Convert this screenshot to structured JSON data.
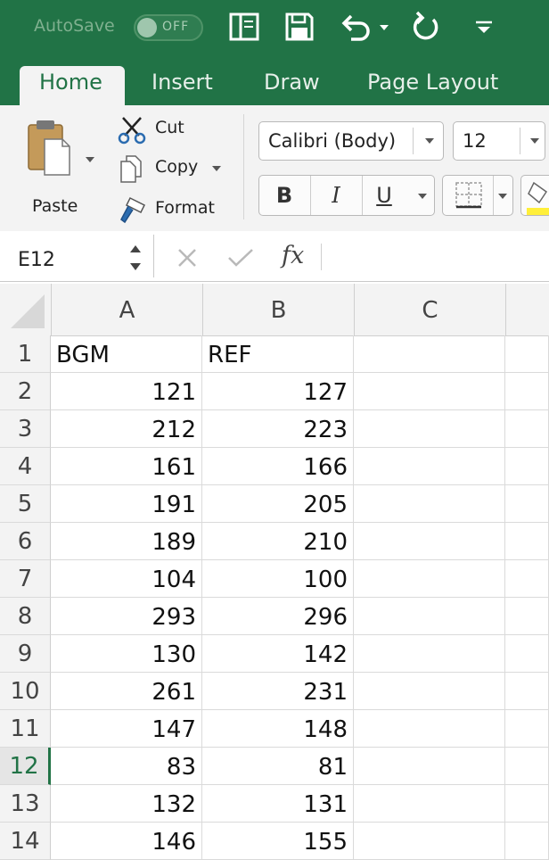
{
  "titlebar": {
    "autosave_label": "AutoSave",
    "autosave_state": "OFF",
    "icons": [
      "sidebar-icon",
      "save-icon",
      "undo-icon",
      "redo-icon",
      "customize-toolbar-icon"
    ]
  },
  "tabs": [
    {
      "label": "Home",
      "active": true
    },
    {
      "label": "Insert",
      "active": false
    },
    {
      "label": "Draw",
      "active": false
    },
    {
      "label": "Page Layout",
      "active": false
    }
  ],
  "ribbon": {
    "paste_label": "Paste",
    "cut_label": "Cut",
    "copy_label": "Copy",
    "format_label": "Format",
    "font_name": "Calibri (Body)",
    "font_size": "12",
    "bold_label": "B",
    "italic_label": "I",
    "underline_label": "U"
  },
  "formula_bar": {
    "name_box": "E12",
    "fx_label": "fx",
    "formula": ""
  },
  "grid": {
    "columns": [
      "A",
      "B",
      "C"
    ],
    "selected_row": 12,
    "rows": [
      {
        "n": "1",
        "a": "BGM",
        "b": "REF"
      },
      {
        "n": "2",
        "a": "121",
        "b": "127"
      },
      {
        "n": "3",
        "a": "212",
        "b": "223"
      },
      {
        "n": "4",
        "a": "161",
        "b": "166"
      },
      {
        "n": "5",
        "a": "191",
        "b": "205"
      },
      {
        "n": "6",
        "a": "189",
        "b": "210"
      },
      {
        "n": "7",
        "a": "104",
        "b": "100"
      },
      {
        "n": "8",
        "a": "293",
        "b": "296"
      },
      {
        "n": "9",
        "a": "130",
        "b": "142"
      },
      {
        "n": "10",
        "a": "261",
        "b": "231"
      },
      {
        "n": "11",
        "a": "147",
        "b": "148"
      },
      {
        "n": "12",
        "a": "83",
        "b": "81"
      },
      {
        "n": "13",
        "a": "132",
        "b": "131"
      },
      {
        "n": "14",
        "a": "146",
        "b": "155"
      }
    ]
  },
  "colors": {
    "accent": "#217346",
    "ribbon_bg": "#f3f3f3",
    "grid_line": "#dadada"
  }
}
